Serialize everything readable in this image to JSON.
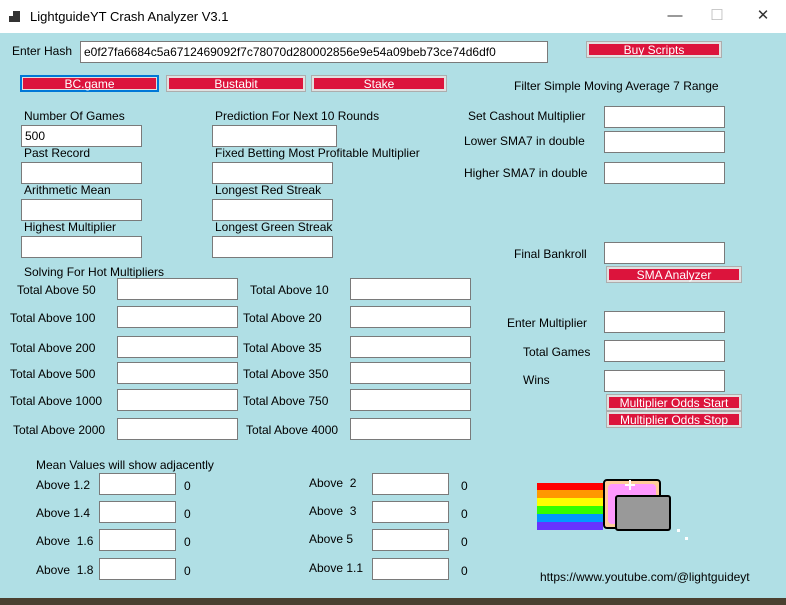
{
  "window": {
    "title": "LightguideYT Crash Analyzer V3.1",
    "minimize": "—",
    "maximize": "☐",
    "close": "✕"
  },
  "hash": {
    "label": "Enter Hash",
    "value": "e0f27fa6684c5a6712469092f7c78070d280002856e9e54a09beb73ce74d6df0"
  },
  "buttons": {
    "buy_scripts": "Buy Scripts",
    "bc_game": "BC.game",
    "bustabit": "Bustabit",
    "stake": "Stake",
    "sma_analyzer": "SMA Analyzer",
    "odds_start": "Multiplier Odds Start",
    "odds_stop": "Multiplier Odds Stop"
  },
  "stats": {
    "number_of_games": {
      "label": "Number Of Games",
      "value": "500"
    },
    "past_record": {
      "label": "Past Record",
      "value": ""
    },
    "arithmetic_mean": {
      "label": "Arithmetic Mean",
      "value": ""
    },
    "highest_multiplier": {
      "label": "Highest Multiplier",
      "value": ""
    },
    "prediction": {
      "label": "Prediction For Next 10 Rounds",
      "value": ""
    },
    "fixed_betting": {
      "label": "Fixed Betting Most Profitable Multiplier",
      "value": ""
    },
    "longest_red": {
      "label": "Longest Red Streak",
      "value": ""
    },
    "longest_green": {
      "label": "Longest Green Streak",
      "value": ""
    }
  },
  "sma": {
    "heading": "Filter Simple Moving Average 7 Range",
    "set_cashout": "Set Cashout Multiplier",
    "lower": "Lower SMA7 in double",
    "higher": "Higher SMA7 in double",
    "final_bankroll": "Final Bankroll"
  },
  "odds": {
    "enter_multiplier": "Enter Multiplier",
    "total_games": "Total Games",
    "wins": "Wins"
  },
  "hot": {
    "heading": "Solving For Hot Multipliers",
    "left": [
      "Total Above 50",
      "Total Above 100",
      "Total Above 200",
      "Total Above 500",
      "Total Above 1000",
      "Total Above 2000"
    ],
    "right": [
      "Total Above 10",
      "Total Above 20",
      "Total Above 35",
      "Total Above 350",
      "Total Above 750",
      "Total Above 4000"
    ]
  },
  "mean": {
    "heading": "Mean Values will show adjacently",
    "left": [
      {
        "label": "Above 1.2",
        "value": "0"
      },
      {
        "label": "Above 1.4",
        "value": "0"
      },
      {
        "label": "Above  1.6",
        "value": "0"
      },
      {
        "label": "Above  1.8",
        "value": "0"
      }
    ],
    "right": [
      {
        "label": "Above  2",
        "value": "0"
      },
      {
        "label": "Above  3",
        "value": "0"
      },
      {
        "label": "Above 5",
        "value": "0"
      },
      {
        "label": "Above 1.1",
        "value": "0"
      }
    ]
  },
  "footer": {
    "url": "https://www.youtube.com/@lightguideyt"
  },
  "colors": {
    "background": "#b0dfe5",
    "button_red": "#dc143c",
    "focus_blue": "#0078d7"
  }
}
